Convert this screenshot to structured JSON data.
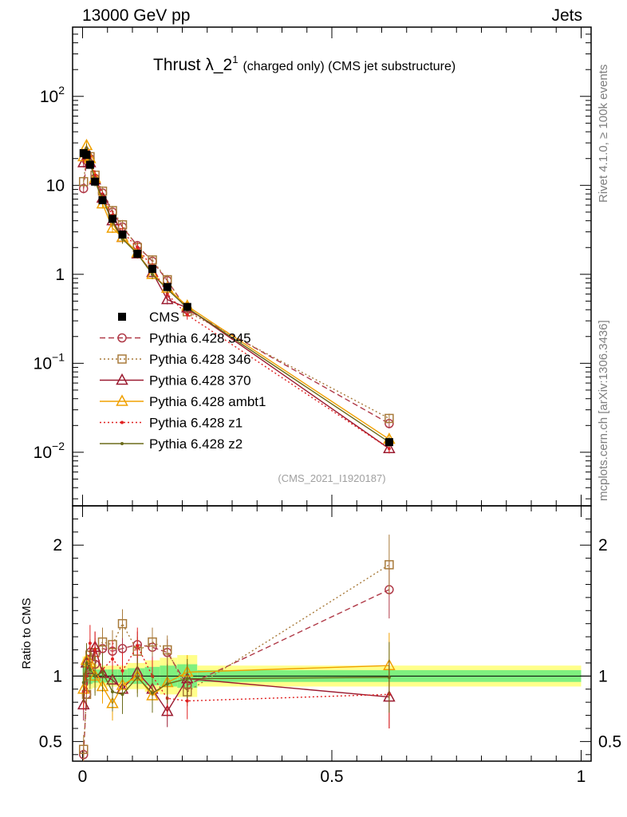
{
  "header": {
    "energy": "13000 GeV pp",
    "category": "Jets",
    "rivet": "Rivet 4.1.0, ≥ 100k events",
    "mcplots": "mcplots.cern.ch [arXiv:1306.3436]"
  },
  "plot": {
    "title_main": "Thrust λ_2",
    "title_sup": "1",
    "title_sub": "(charged only) (CMS jet substructure)",
    "analysis_id": "(CMS_2021_I1920187)",
    "ratio_label": "Ratio to CMS"
  },
  "colors": {
    "cms": "#000000",
    "p345": "#b03a48",
    "p346": "#a87a3a",
    "p370": "#9b1b30",
    "ambt1": "#f0a000",
    "z1": "#e02020",
    "z2": "#6b6b1a",
    "band_inner": "#7ff07f",
    "band_outer": "#ffff8a"
  },
  "chart_data": {
    "type": "line",
    "x_axis": {
      "range": [
        -0.02,
        1.02
      ],
      "ticks": [
        "0",
        "0.5",
        "1"
      ]
    },
    "main_axis": {
      "scale": "log",
      "range": [
        0.0025,
        600
      ],
      "ticks": [
        {
          "v": 0.01,
          "b": "10",
          "e": "−2"
        },
        {
          "v": 0.1,
          "b": "10",
          "e": "−1"
        },
        {
          "v": 1,
          "b": "1",
          "e": ""
        },
        {
          "v": 10,
          "b": "10",
          "e": ""
        },
        {
          "v": 100,
          "b": "10",
          "e": "2"
        }
      ]
    },
    "ratio_axis": {
      "range": [
        0.35,
        2.3
      ],
      "ticks": [
        "0.5",
        "1",
        "2"
      ]
    },
    "x": [
      0.002,
      0.008,
      0.015,
      0.025,
      0.04,
      0.06,
      0.08,
      0.11,
      0.14,
      0.17,
      0.21,
      0.615
    ],
    "cms": [
      23,
      22,
      17,
      11,
      6.8,
      4.2,
      2.8,
      1.7,
      1.15,
      0.72,
      0.43,
      0.013
    ],
    "series": [
      {
        "name": "Pythia 6.428 345",
        "key": "p345",
        "marker": "circle",
        "values": [
          9.2,
          19.0,
          20.0,
          12.0,
          8.2,
          5.0,
          3.4,
          2.1,
          1.4,
          0.85,
          0.4,
          0.021
        ],
        "ratio": [
          0.4,
          0.86,
          1.18,
          1.09,
          1.21,
          1.19,
          1.21,
          1.24,
          1.22,
          1.18,
          0.93,
          1.66
        ]
      },
      {
        "name": "Pythia 6.428 346",
        "key": "p346",
        "marker": "square",
        "values": [
          11.0,
          21.0,
          21.0,
          13.0,
          8.6,
          5.2,
          3.6,
          2.0,
          1.45,
          0.87,
          0.38,
          0.024
        ],
        "ratio": [
          0.44,
          0.86,
          1.16,
          1.18,
          1.26,
          1.24,
          1.4,
          1.19,
          1.26,
          1.2,
          0.88,
          1.85
        ]
      },
      {
        "name": "Pythia 6.428 370",
        "key": "p370",
        "marker": "triangle",
        "values": [
          18.0,
          24.0,
          18.0,
          11.5,
          7.2,
          4.0,
          2.6,
          1.7,
          1.05,
          0.52,
          0.42,
          0.011
        ],
        "ratio": [
          0.78,
          1.1,
          1.05,
          1.22,
          1.02,
          0.97,
          0.9,
          1.03,
          0.9,
          0.73,
          0.98,
          0.84
        ]
      },
      {
        "name": "Pythia 6.428 ambt1",
        "key": "ambt1",
        "marker": "triangle",
        "values": [
          21.0,
          28.0,
          20.0,
          12.0,
          6.2,
          3.3,
          2.6,
          1.75,
          1.0,
          0.7,
          0.44,
          0.014
        ],
        "ratio": [
          0.9,
          1.12,
          1.1,
          1.0,
          0.92,
          0.79,
          0.93,
          1.0,
          0.85,
          0.95,
          1.03,
          1.08
        ]
      },
      {
        "name": "Pythia 6.428 z1",
        "key": "z1",
        "marker": "dot",
        "values": [
          20.0,
          24.0,
          21.0,
          13.0,
          7.5,
          4.6,
          3.0,
          2.0,
          1.2,
          0.6,
          0.35,
          0.011
        ],
        "ratio": [
          0.88,
          1.0,
          1.25,
          1.2,
          1.05,
          1.13,
          1.04,
          1.23,
          1.0,
          0.83,
          0.81,
          0.86
        ]
      },
      {
        "name": "Pythia 6.428 z2",
        "key": "z2",
        "marker": "dot",
        "values": [
          22.0,
          26.0,
          19.0,
          11.0,
          7.0,
          3.9,
          2.5,
          1.7,
          1.0,
          0.68,
          0.42,
          0.013
        ],
        "ratio": [
          0.95,
          1.1,
          1.05,
          1.0,
          1.03,
          0.88,
          0.86,
          0.99,
          0.87,
          0.94,
          0.98,
          0.99
        ]
      }
    ]
  }
}
